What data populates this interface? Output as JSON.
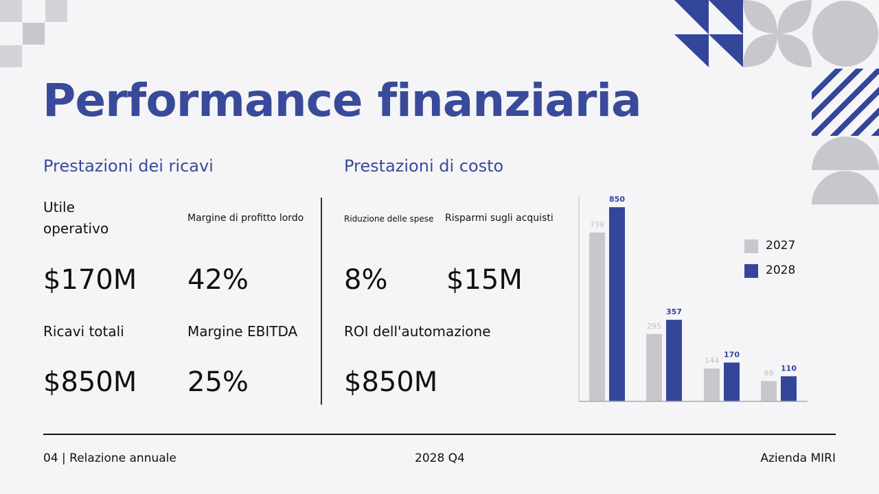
{
  "title": "Performance finanziaria",
  "revenue": {
    "heading": "Prestazioni dei ricavi",
    "operating_income_label": "Utile operativo",
    "operating_income_value": "$170M",
    "gross_margin_label": "Margine di profitto lordo",
    "gross_margin_value": "42%",
    "total_revenue_label": "Ricavi totali",
    "total_revenue_value": "$850M",
    "ebitda_label": "Margine EBITDA",
    "ebitda_value": "25%"
  },
  "cost": {
    "heading": "Prestazioni di costo",
    "expense_reduction_label": "Riduzione delle spese",
    "expense_reduction_value": "8%",
    "purchase_savings_label": "Risparmi sugli acquisti",
    "purchase_savings_value": "$15M",
    "automation_roi_label": "ROI dell'automazione",
    "automation_roi_value": "$850M"
  },
  "chart_data": {
    "type": "bar",
    "categories": [
      "",
      "",
      "",
      ""
    ],
    "series": [
      {
        "name": "2027",
        "values": [
          739,
          295,
          144,
          89
        ],
        "color": "#c8c8cc"
      },
      {
        "name": "2028",
        "values": [
          850,
          357,
          170,
          110
        ],
        "color": "#34469a"
      }
    ],
    "ylim": [
      0,
      850
    ],
    "grid": false,
    "legend": "right"
  },
  "footer": {
    "left": "04 | Relazione annuale",
    "center": "2028 Q4",
    "right": "Azienda MIRI"
  },
  "colors": {
    "accent": "#3a4a9a",
    "bar_2028": "#34469a",
    "bar_2027": "#c8c8cc",
    "background": "#f5f5f7"
  }
}
